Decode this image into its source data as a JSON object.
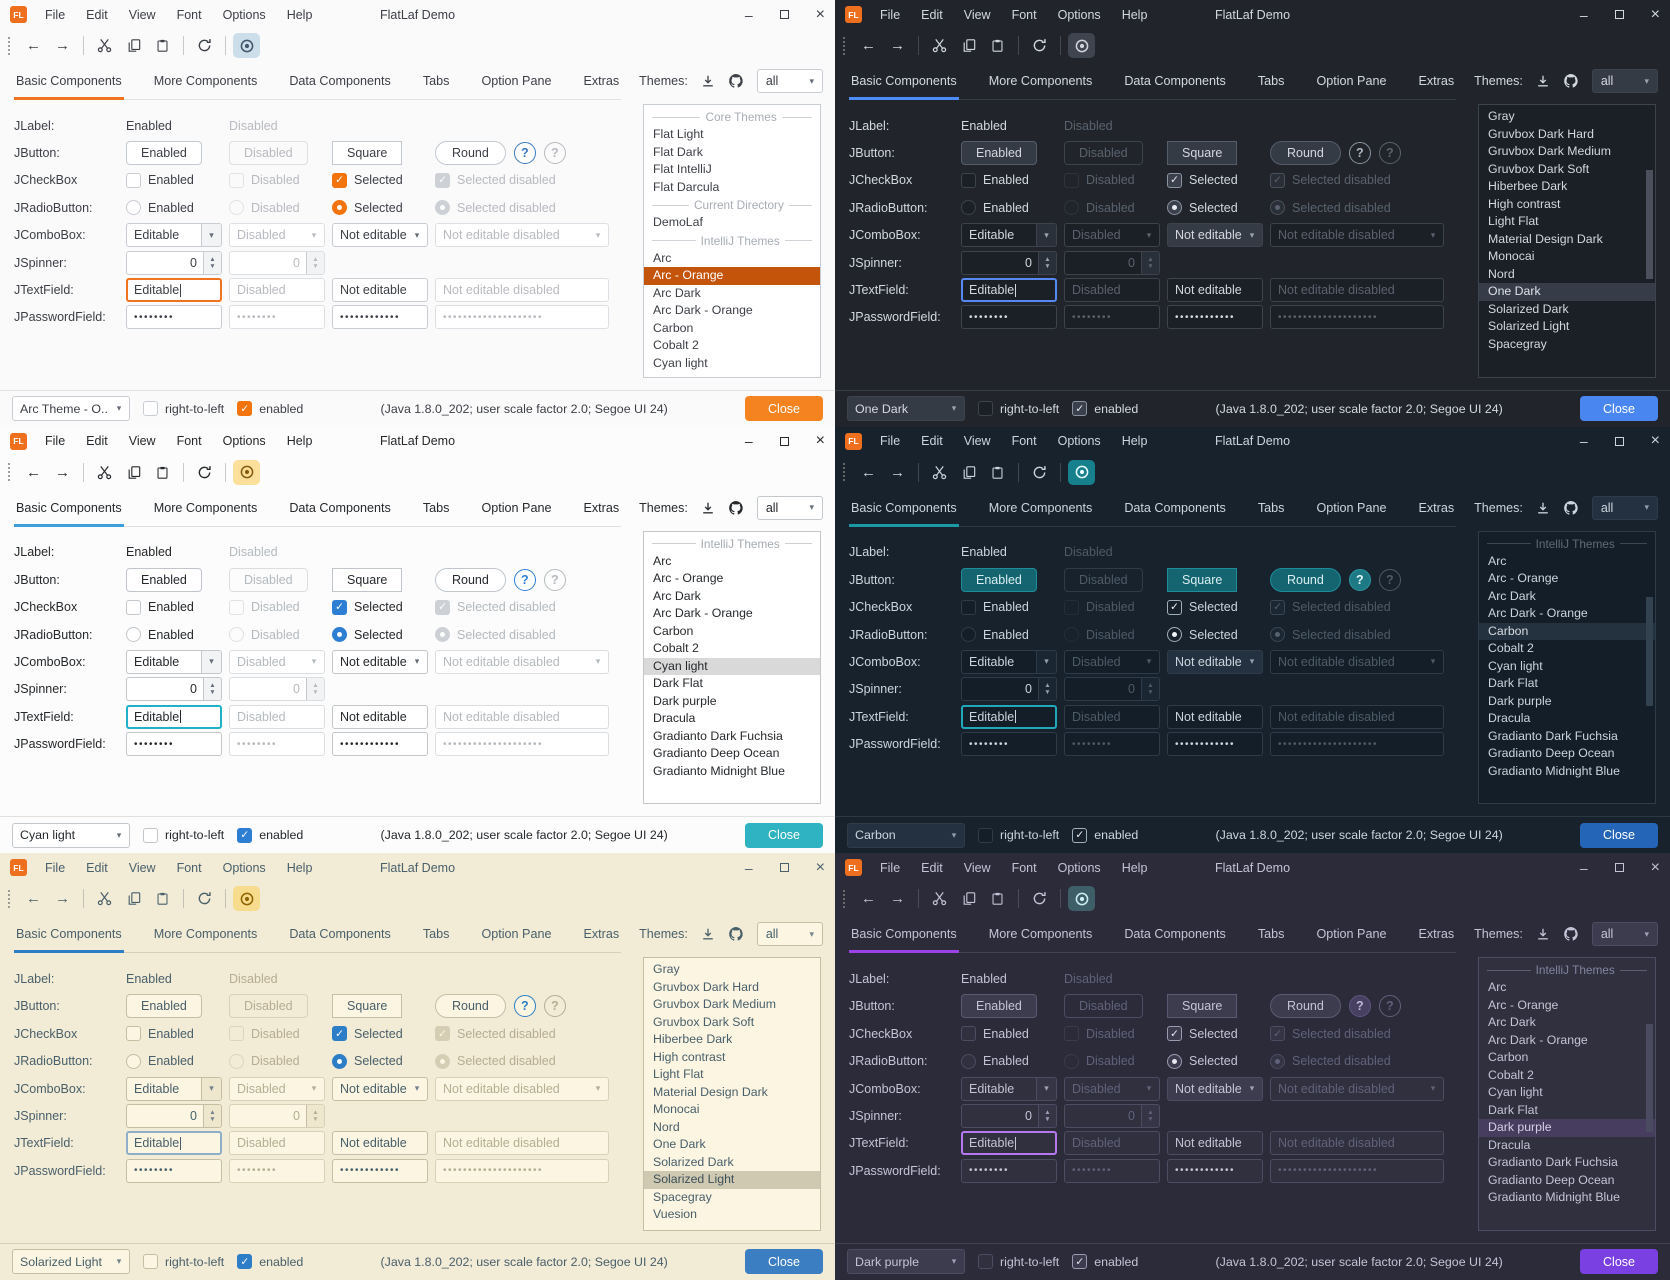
{
  "shared": {
    "window": {
      "logo": "FL",
      "title": "FlatLaf Demo",
      "menus": [
        "File",
        "Edit",
        "View",
        "Font",
        "Options",
        "Help"
      ],
      "controls": {
        "minimize": "–",
        "close": "×"
      }
    },
    "toolbar_icons": [
      "back",
      "forward",
      "cut",
      "copy",
      "paste",
      "refresh",
      "show"
    ],
    "tabs": [
      "Basic Components",
      "More Components",
      "Data Components",
      "Tabs",
      "Option Pane",
      "Extras"
    ],
    "themes_header": {
      "label": "Themes:",
      "filter_value": "all"
    },
    "rows": {
      "jlabel": {
        "label": "JLabel:",
        "enabled": "Enabled",
        "disabled": "Disabled"
      },
      "jbutton": {
        "label": "JButton:",
        "buttons": [
          "Enabled",
          "Disabled",
          "Square",
          "Round"
        ],
        "help": "?"
      },
      "jcheckbox": {
        "label": "JCheckBox",
        "items": [
          "Enabled",
          "Disabled",
          "Selected",
          "Selected disabled"
        ]
      },
      "jradiobutton": {
        "label": "JRadioButton:",
        "items": [
          "Enabled",
          "Disabled",
          "Selected",
          "Selected disabled"
        ]
      },
      "jcombobox": {
        "label": "JComboBox:",
        "items": [
          "Editable",
          "Disabled",
          "Not editable",
          "Not editable disabled"
        ]
      },
      "jspinner": {
        "label": "JSpinner:",
        "value": "0"
      },
      "jtextfield": {
        "label": "JTextField:",
        "items": [
          "Editable",
          "Disabled",
          "Not editable",
          "Not editable disabled"
        ]
      },
      "jpasswordfield": {
        "label": "JPasswordField:",
        "dots": [
          "••••••••",
          "••••••••",
          "••••••••••••",
          "••••••••••••••••••••"
        ]
      }
    },
    "statusbar": {
      "right_to_left": "right-to-left",
      "enabled": "enabled",
      "status": "(Java 1.8.0_202;  user scale factor 2.0; Segoe UI 24)",
      "close": "Close"
    }
  },
  "panels": [
    {
      "name": "arc-orange",
      "dark": false,
      "bottom_combo": "Arc Theme - O...",
      "theme_list": [
        {
          "h": "Core Themes"
        },
        {
          "i": "Flat Light"
        },
        {
          "i": "Flat Dark"
        },
        {
          "i": "Flat IntelliJ"
        },
        {
          "i": "Flat Darcula"
        },
        {
          "h": "Current Directory"
        },
        {
          "i": "DemoLaf"
        },
        {
          "h": "IntelliJ Themes"
        },
        {
          "i": "Arc"
        },
        {
          "i": "Arc - Orange",
          "sel": true
        },
        {
          "i": "Arc Dark"
        },
        {
          "i": "Arc Dark - Orange"
        },
        {
          "i": "Carbon"
        },
        {
          "i": "Cobalt 2"
        },
        {
          "i": "Cyan light"
        }
      ],
      "colors": {
        "bg": "#fafafa",
        "field": "#ffffff",
        "border": "#c8cdd4",
        "div": "#e2e2e2",
        "fg": "#3c3f46",
        "dis": "#b8bac0",
        "accent": "#f0731f",
        "focus": "#f0731f",
        "selbg": "#c4540a",
        "selfg": "#ffffff",
        "btn": "#ffffff",
        "btnBorder": "#c3c9d0",
        "btnFg": "#3c3f46",
        "btnDisBorder": "#dcdfe3",
        "comboBg": "#ffffff",
        "comboBtn": "#f2f3f5",
        "arrFg": "#666d78",
        "check": "#f3730d",
        "checkBd": "#f3730d",
        "checkFg": "#ffffff",
        "ondisBg": "#cdd1d6",
        "ondisBd": "#cdd1d6",
        "ondisFg": "#ffffff",
        "closeBg": "#f5831f",
        "closeFg": "#ffffff",
        "eyeBg": "#ccdee9",
        "eyeFg": "#41566b",
        "hdr": "#a7adb5",
        "scroll": "transparent",
        "helpBg": "#ffffff",
        "helpBd": "#3b78c1",
        "helpFg": "#3b78c1"
      }
    },
    {
      "name": "one-dark",
      "dark": true,
      "bottom_combo": "One Dark",
      "theme_list": [
        {
          "i": "Gray"
        },
        {
          "i": "Gruvbox Dark Hard"
        },
        {
          "i": "Gruvbox Dark Medium"
        },
        {
          "i": "Gruvbox Dark Soft"
        },
        {
          "i": "Hiberbee Dark"
        },
        {
          "i": "High contrast"
        },
        {
          "i": "Light Flat"
        },
        {
          "i": "Material Design Dark"
        },
        {
          "i": "Monocai"
        },
        {
          "i": "Nord"
        },
        {
          "i": "One Dark",
          "sel": true
        },
        {
          "i": "Solarized Dark"
        },
        {
          "i": "Solarized Light"
        },
        {
          "i": "Spacegray"
        }
      ],
      "colors": {
        "bg": "#21252b",
        "field": "#1b1f26",
        "border": "#3d434d",
        "div": "#383e46",
        "fg": "#d3d8e0",
        "dis": "#5a626e",
        "accent": "#4e8cf8",
        "focus": "#568af2",
        "selbg": "#363d49",
        "selfg": "#dde2ea",
        "btn": "#353b45",
        "btnBorder": "#555d6b",
        "btnFg": "#d3d8e0",
        "btnDisBorder": "#3d434d",
        "comboBg": "#353b45",
        "comboBtn": "#2a3039",
        "arrFg": "#9aa3b0",
        "check": "#3a414c",
        "checkBd": "#8a93a0",
        "checkFg": "#e8ecf2",
        "ondisBg": "#2a2f37",
        "ondisBd": "#4a515c",
        "ondisFg": "#596270",
        "closeBg": "#4a86f0",
        "closeFg": "#ffffff",
        "eyeBg": "#3e454f",
        "eyeFg": "#cfd4dc",
        "hdr": "#8a93a0",
        "scroll": "#4a515c",
        "helpBg": "transparent",
        "helpBd": "#8a93a0",
        "helpFg": "#aeb6c2"
      }
    },
    {
      "name": "cyan-light",
      "dark": false,
      "bottom_combo": "Cyan light",
      "theme_list": [
        {
          "h": "IntelliJ Themes"
        },
        {
          "i": "Arc"
        },
        {
          "i": "Arc - Orange"
        },
        {
          "i": "Arc Dark"
        },
        {
          "i": "Arc Dark - Orange"
        },
        {
          "i": "Carbon"
        },
        {
          "i": "Cobalt 2"
        },
        {
          "i": "Cyan light",
          "sel": true
        },
        {
          "i": "Dark Flat"
        },
        {
          "i": "Dark purple"
        },
        {
          "i": "Dracula"
        },
        {
          "i": "Gradianto Dark Fuchsia"
        },
        {
          "i": "Gradianto Deep Ocean"
        },
        {
          "i": "Gradianto Midnight Blue"
        }
      ],
      "colors": {
        "bg": "#fcfcfc",
        "field": "#ffffff",
        "border": "#c2c7cc",
        "div": "#e0e0e0",
        "fg": "#26292c",
        "dis": "#b4babe",
        "accent": "#3f9fd8",
        "focus": "#21b0c8",
        "selbg": "#d9d9d9",
        "selfg": "#26292c",
        "btn": "#ffffff",
        "btnBorder": "#bfc5cb",
        "btnFg": "#26292c",
        "btnDisBorder": "#dbdee1",
        "comboBg": "#ffffff",
        "comboBtn": "#f1f3f4",
        "arrFg": "#666d78",
        "check": "#2e7fd4",
        "checkBd": "#2e7fd4",
        "checkFg": "#ffffff",
        "ondisBg": "#cdd1d6",
        "ondisBd": "#cdd1d6",
        "ondisFg": "#ffffff",
        "closeBg": "#2fb3c2",
        "closeFg": "#ffffff",
        "eyeBg": "#fbdf9a",
        "eyeFg": "#8a5c12",
        "hdr": "#a5abb0",
        "scroll": "transparent",
        "helpBg": "#ffffff",
        "helpBd": "#2e7fd4",
        "helpFg": "#2e7fd4"
      }
    },
    {
      "name": "carbon",
      "dark": true,
      "bottom_combo": "Carbon",
      "theme_list": [
        {
          "h": "IntelliJ Themes"
        },
        {
          "i": "Arc"
        },
        {
          "i": "Arc - Orange"
        },
        {
          "i": "Arc Dark"
        },
        {
          "i": "Arc Dark - Orange"
        },
        {
          "i": "Carbon",
          "sel": true
        },
        {
          "i": "Cobalt 2"
        },
        {
          "i": "Cyan light"
        },
        {
          "i": "Dark Flat"
        },
        {
          "i": "Dark purple"
        },
        {
          "i": "Dracula"
        },
        {
          "i": "Gradianto Dark Fuchsia"
        },
        {
          "i": "Gradianto Deep Ocean"
        },
        {
          "i": "Gradianto Midnight Blue"
        }
      ],
      "colors": {
        "bg": "#17222c",
        "field": "#131e28",
        "border": "#2e3c49",
        "div": "#2a3843",
        "fg": "#ccd5dd",
        "dis": "#4e5b67",
        "accent": "#1b99a7",
        "focus": "#21a8ba",
        "selbg": "#24313e",
        "selfg": "#d5dde4",
        "btn": "#156570",
        "btnBorder": "#1e8d9b",
        "btnFg": "#d8eef0",
        "btnDisBorder": "#2e3c49",
        "comboBg": "#233140",
        "comboBtn": "#1a2733",
        "arrFg": "#8fa0ac",
        "check": "#16212b",
        "checkBd": "#9fb0bc",
        "checkFg": "#eef4f8",
        "ondisBg": "#1b2733",
        "ondisBd": "#3a4854",
        "ondisFg": "#56646f",
        "closeBg": "#2565b8",
        "closeFg": "#ffffff",
        "eyeBg": "#17808d",
        "eyeFg": "#eafcff",
        "hdr": "#5d6b76",
        "scroll": "#32424f",
        "helpBg": "#1d7a85",
        "helpBd": "#2b97a4",
        "helpFg": "#e2f6f8"
      }
    },
    {
      "name": "solarized-light",
      "dark": false,
      "bottom_combo": "Solarized Light",
      "theme_list": [
        {
          "i": "Gray"
        },
        {
          "i": "Gruvbox Dark Hard"
        },
        {
          "i": "Gruvbox Dark Medium"
        },
        {
          "i": "Gruvbox Dark Soft"
        },
        {
          "i": "Hiberbee Dark"
        },
        {
          "i": "High contrast"
        },
        {
          "i": "Light Flat"
        },
        {
          "i": "Material Design Dark"
        },
        {
          "i": "Monocai"
        },
        {
          "i": "Nord"
        },
        {
          "i": "One Dark"
        },
        {
          "i": "Solarized Dark"
        },
        {
          "i": "Solarized Light",
          "sel": true
        },
        {
          "i": "Spacegray"
        },
        {
          "i": "Vuesion"
        }
      ],
      "colors": {
        "bg": "#f2ebd6",
        "field": "#fbf5e2",
        "border": "#c6bea3",
        "div": "#d8d0b6",
        "fg": "#49606b",
        "dis": "#b6ad92",
        "accent": "#2d7ec6",
        "focus": "#8fafc9",
        "selbg": "#cfc9b1",
        "selfg": "#3c5059",
        "btn": "#fbf5e2",
        "btnBorder": "#c6bea3",
        "btnFg": "#49606b",
        "btnDisBorder": "#d8d1b8",
        "comboBg": "#fbf5e2",
        "comboBtn": "#efe7cd",
        "arrFg": "#72828c",
        "check": "#2d7ec6",
        "checkBd": "#2d7ec6",
        "checkFg": "#ffffff",
        "ondisBg": "#d5cdb4",
        "ondisBd": "#d5cdb4",
        "ondisFg": "#fbf5e2",
        "closeBg": "#3c7ec2",
        "closeFg": "#ffffff",
        "eyeBg": "#f7dc8e",
        "eyeFg": "#8f6400",
        "hdr": "#a89f83",
        "scroll": "transparent",
        "helpBg": "#fbf5e2",
        "helpBd": "#2d7ec6",
        "helpFg": "#2d7ec6"
      }
    },
    {
      "name": "dark-purple",
      "dark": true,
      "bottom_combo": "Dark purple",
      "theme_list": [
        {
          "h": "IntelliJ Themes"
        },
        {
          "i": "Arc"
        },
        {
          "i": "Arc - Orange"
        },
        {
          "i": "Arc Dark"
        },
        {
          "i": "Arc Dark - Orange"
        },
        {
          "i": "Carbon"
        },
        {
          "i": "Cobalt 2"
        },
        {
          "i": "Cyan light"
        },
        {
          "i": "Dark Flat"
        },
        {
          "i": "Dark purple",
          "sel": true
        },
        {
          "i": "Dracula"
        },
        {
          "i": "Gradianto Dark Fuchsia"
        },
        {
          "i": "Gradianto Deep Ocean"
        },
        {
          "i": "Gradianto Midnight Blue"
        }
      ],
      "colors": {
        "bg": "#2b2b3a",
        "field": "#30303f",
        "border": "#4c4c62",
        "div": "#424254",
        "fg": "#c4c4d6",
        "dis": "#61617a",
        "accent": "#9b41e8",
        "focus": "#b678f0",
        "selbg": "#463d5f",
        "selfg": "#d6d0e6",
        "btn": "#3c3c4e",
        "btnBorder": "#5a5a72",
        "btnFg": "#c4c4d6",
        "btnDisBorder": "#4c4c62",
        "comboBg": "#3c3c4e",
        "comboBtn": "#353546",
        "arrFg": "#9e9eb4",
        "check": "#3c3c4e",
        "checkBd": "#9a9ab0",
        "checkFg": "#e8e8f2",
        "ondisBg": "#343444",
        "ondisBd": "#4c4c62",
        "ondisFg": "#62627c",
        "closeBg": "#7b40e2",
        "closeFg": "#ffffff",
        "eyeBg": "#3e5f68",
        "eyeFg": "#cfeef2",
        "hdr": "#8383a0",
        "scroll": "#4a4a60",
        "helpBg": "#474060",
        "helpBd": "#5e5680",
        "helpFg": "#c0b8d8"
      }
    }
  ]
}
